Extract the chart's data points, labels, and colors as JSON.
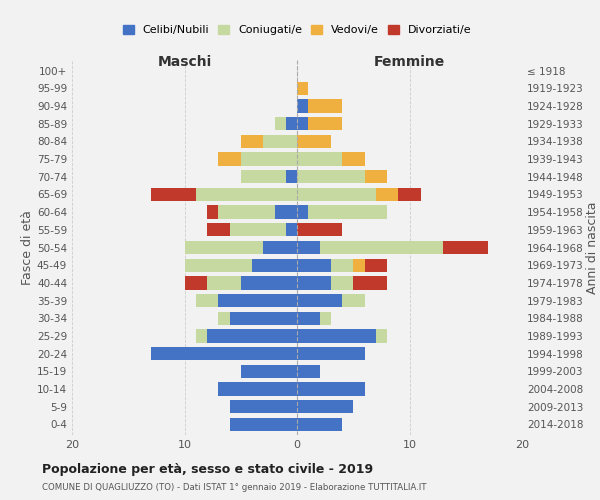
{
  "age_groups": [
    "0-4",
    "5-9",
    "10-14",
    "15-19",
    "20-24",
    "25-29",
    "30-34",
    "35-39",
    "40-44",
    "45-49",
    "50-54",
    "55-59",
    "60-64",
    "65-69",
    "70-74",
    "75-79",
    "80-84",
    "85-89",
    "90-94",
    "95-99",
    "100+"
  ],
  "birth_years": [
    "2014-2018",
    "2009-2013",
    "2004-2008",
    "1999-2003",
    "1994-1998",
    "1989-1993",
    "1984-1988",
    "1979-1983",
    "1974-1978",
    "1969-1973",
    "1964-1968",
    "1959-1963",
    "1954-1958",
    "1949-1953",
    "1944-1948",
    "1939-1943",
    "1934-1938",
    "1929-1933",
    "1924-1928",
    "1919-1923",
    "≤ 1918"
  ],
  "male": {
    "celibi": [
      6,
      6,
      7,
      5,
      13,
      8,
      6,
      7,
      5,
      4,
      3,
      1,
      2,
      0,
      1,
      0,
      0,
      1,
      0,
      0,
      0
    ],
    "coniugati": [
      0,
      0,
      0,
      0,
      0,
      1,
      1,
      2,
      3,
      6,
      7,
      5,
      5,
      9,
      4,
      5,
      3,
      1,
      0,
      0,
      0
    ],
    "vedovi": [
      0,
      0,
      0,
      0,
      0,
      0,
      0,
      0,
      0,
      0,
      0,
      0,
      0,
      0,
      0,
      2,
      2,
      0,
      0,
      0,
      0
    ],
    "divorziati": [
      0,
      0,
      0,
      0,
      0,
      0,
      0,
      0,
      2,
      0,
      0,
      2,
      1,
      4,
      0,
      0,
      0,
      0,
      0,
      0,
      0
    ]
  },
  "female": {
    "nubili": [
      4,
      5,
      6,
      2,
      6,
      7,
      2,
      4,
      3,
      3,
      2,
      0,
      1,
      0,
      0,
      0,
      0,
      1,
      1,
      0,
      0
    ],
    "coniugate": [
      0,
      0,
      0,
      0,
      0,
      1,
      1,
      2,
      2,
      2,
      11,
      0,
      7,
      7,
      6,
      4,
      0,
      0,
      0,
      0,
      0
    ],
    "vedove": [
      0,
      0,
      0,
      0,
      0,
      0,
      0,
      0,
      0,
      1,
      0,
      0,
      0,
      2,
      2,
      2,
      3,
      3,
      3,
      1,
      0
    ],
    "divorziate": [
      0,
      0,
      0,
      0,
      0,
      0,
      0,
      0,
      3,
      2,
      4,
      4,
      0,
      2,
      0,
      0,
      0,
      0,
      0,
      0,
      0
    ]
  },
  "colors": {
    "celibi": "#4472c4",
    "coniugati": "#c5d9a0",
    "vedovi": "#f0b040",
    "divorziati": "#c0392b"
  },
  "title": "Popolazione per età, sesso e stato civile - 2019",
  "subtitle": "COMUNE DI QUAGLIUZZO (TO) - Dati ISTAT 1° gennaio 2019 - Elaborazione TUTTITALIA.IT",
  "xlabel_left": "Maschi",
  "xlabel_right": "Femmine",
  "ylabel_left": "Fasce di età",
  "ylabel_right": "Anni di nascita",
  "xlim": 20,
  "legend_labels": [
    "Celibi/Nubili",
    "Coniugati/e",
    "Vedovi/e",
    "Divorziati/e"
  ],
  "background_color": "#f2f2f2"
}
